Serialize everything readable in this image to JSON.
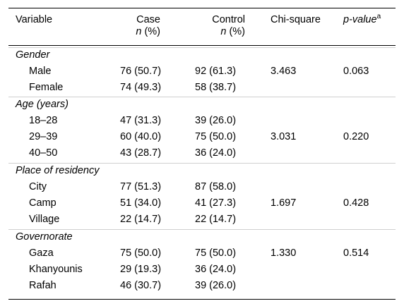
{
  "headers": {
    "variable": "Variable",
    "case": "Case",
    "case_sub": "(%)",
    "control": "Control",
    "control_sub": "(%)",
    "n": "n",
    "chi": "Chi-square",
    "pvalue": "p-value",
    "pvalue_sup": "a"
  },
  "groups": [
    {
      "name": "Gender",
      "rows": [
        {
          "label": "Male",
          "case": "76 (50.7)",
          "control": "92 (61.3)"
        },
        {
          "label": "Female",
          "case": "74 (49.3)",
          "control": "58 (38.7)"
        }
      ],
      "chi": "3.463",
      "p": "0.063"
    },
    {
      "name": "Age (years)",
      "rows": [
        {
          "label": "18–28",
          "case": "47 (31.3)",
          "control": "39 (26.0)"
        },
        {
          "label": "29–39",
          "case": "60 (40.0)",
          "control": "75 (50.0)"
        },
        {
          "label": "40–50",
          "case": "43 (28.7)",
          "control": "36 (24.0)"
        }
      ],
      "chi": "3.031",
      "p": "0.220"
    },
    {
      "name": "Place of residency",
      "rows": [
        {
          "label": "City",
          "case": "77 (51.3)",
          "control": "87 (58.0)"
        },
        {
          "label": "Camp",
          "case": "51 (34.0)",
          "control": "41 (27.3)"
        },
        {
          "label": "Village",
          "case": "22 (14.7)",
          "control": "22 (14.7)"
        }
      ],
      "chi": "1.697",
      "p": "0.428"
    },
    {
      "name": "Governorate",
      "rows": [
        {
          "label": "Gaza",
          "case": "75 (50.0)",
          "control": "75 (50.0)"
        },
        {
          "label": "Khanyounis",
          "case": "29 (19.3)",
          "control": "36 (24.0)"
        },
        {
          "label": "Rafah",
          "case": "46 (30.7)",
          "control": "39 (26.0)"
        }
      ],
      "chi": "1.330",
      "p": "0.514"
    }
  ]
}
